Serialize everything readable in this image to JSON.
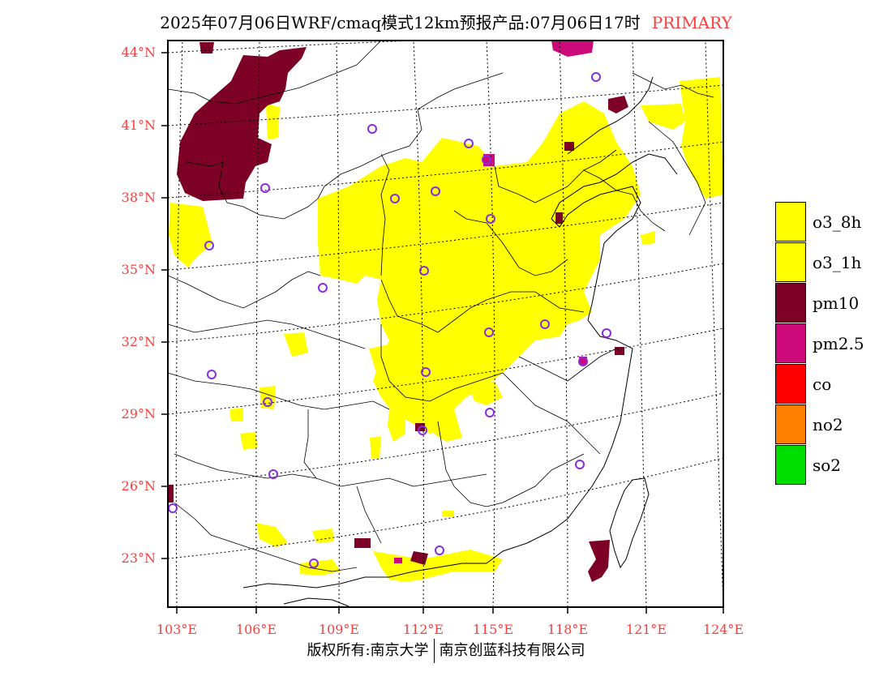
{
  "title": {
    "main": "2025年07月06日WRF/cmaq模式12km预报产品:07月06日17时",
    "tag": "PRIMARY",
    "tag_color": "#ff3c3c"
  },
  "axes": {
    "lat_labels": [
      "23°N",
      "26°N",
      "29°N",
      "32°N",
      "35°N",
      "38°N",
      "41°N",
      "44°N"
    ],
    "lon_labels": [
      "103°E",
      "106°E",
      "109°E",
      "112°E",
      "115°E",
      "118°E",
      "121°E",
      "124°E"
    ],
    "label_color": "#ff3c3c",
    "lon_range": [
      102.7,
      124
    ],
    "lat_range": [
      21,
      44.5
    ]
  },
  "legend": [
    {
      "label": "o3_8h",
      "color": "#ffff00"
    },
    {
      "label": "o3_1h",
      "color": "#ffff00"
    },
    {
      "label": "pm10",
      "color": "#7d0027"
    },
    {
      "label": "pm2.5",
      "color": "#cc0a7a"
    },
    {
      "label": "co",
      "color": "#ff0000"
    },
    {
      "label": "no2",
      "color": "#ff8000"
    },
    {
      "label": "so2",
      "color": "#00dd00"
    }
  ],
  "footer": {
    "left": "版权所有:南京大学",
    "right": "南京创蓝科技有限公司"
  },
  "station_icon": "circle-marker-icon"
}
